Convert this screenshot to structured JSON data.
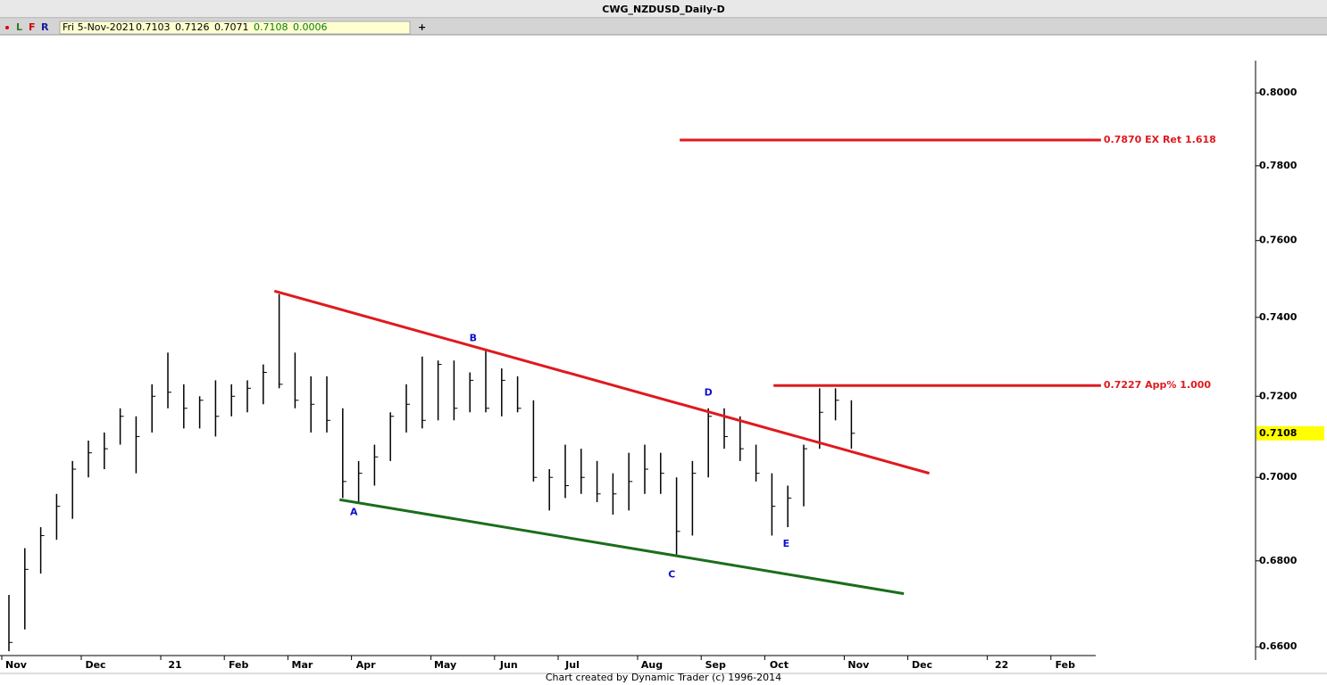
{
  "header": {
    "title": "CWG_NZDUSD_Daily-D",
    "letters": [
      "L",
      "F",
      "R"
    ],
    "date": "Fri 5-Nov-2021",
    "fields": [
      "0.7103",
      "0.7126",
      "0.7071",
      "0.7108",
      "0.0006"
    ],
    "plus": "+"
  },
  "footer": "Chart created by Dynamic Trader  (c) 1996-2014",
  "chart_data": {
    "type": "ohlc",
    "log_scale": true,
    "color": "#000000",
    "categories": [
      "Nov",
      null,
      null,
      null,
      null,
      "Dec",
      null,
      null,
      null,
      null,
      "21",
      null,
      null,
      null,
      "Feb",
      null,
      null,
      null,
      "Mar",
      null,
      null,
      null,
      "Apr",
      null,
      null,
      null,
      null,
      "May",
      null,
      null,
      null,
      "Jun",
      null,
      null,
      null,
      "Jul",
      null,
      null,
      null,
      null,
      "Aug",
      null,
      null,
      null,
      "Sep",
      null,
      null,
      null,
      "Oct",
      null,
      null,
      null,
      null,
      "Nov",
      null,
      null,
      null,
      "Dec",
      null,
      null,
      null,
      null,
      "22",
      null,
      null,
      null,
      "Feb",
      null
    ],
    "high": [
      0.672,
      0.683,
      0.688,
      0.696,
      0.704,
      0.709,
      0.711,
      0.717,
      0.715,
      0.723,
      0.731,
      0.723,
      0.72,
      0.724,
      0.723,
      0.724,
      0.728,
      0.746,
      0.731,
      0.725,
      0.725,
      0.717,
      0.704,
      0.708,
      0.716,
      0.723,
      0.73,
      0.729,
      0.729,
      0.726,
      0.732,
      0.727,
      0.725,
      0.719,
      0.702,
      0.708,
      0.707,
      0.704,
      0.701,
      0.706,
      0.708,
      0.706,
      0.7,
      0.704,
      0.717,
      0.717,
      0.715,
      0.708,
      0.701,
      0.698,
      0.708,
      0.722,
      0.722,
      0.719,
      null,
      null,
      null,
      null,
      null,
      null,
      null,
      null,
      null,
      null,
      null,
      null,
      null,
      null
    ],
    "low": [
      0.659,
      0.664,
      0.677,
      0.685,
      0.69,
      0.7,
      0.702,
      0.708,
      0.701,
      0.711,
      0.717,
      0.712,
      0.712,
      0.71,
      0.715,
      0.716,
      0.718,
      0.722,
      0.717,
      0.711,
      0.711,
      0.695,
      0.694,
      0.698,
      0.704,
      0.711,
      0.712,
      0.714,
      0.714,
      0.716,
      0.716,
      0.715,
      0.716,
      0.699,
      0.692,
      0.695,
      0.696,
      0.694,
      0.691,
      0.692,
      0.696,
      0.696,
      0.681,
      0.686,
      0.7,
      0.707,
      0.704,
      0.699,
      0.686,
      0.688,
      0.693,
      0.707,
      0.714,
      0.707,
      null,
      null,
      null,
      null,
      null,
      null,
      null,
      null,
      null,
      null,
      null,
      null,
      null,
      null
    ],
    "close": [
      0.661,
      0.678,
      0.686,
      0.693,
      0.702,
      0.706,
      0.707,
      0.715,
      0.71,
      0.72,
      0.721,
      0.717,
      0.719,
      0.715,
      0.72,
      0.722,
      0.726,
      0.723,
      0.719,
      0.718,
      0.714,
      0.699,
      0.701,
      0.705,
      0.715,
      0.718,
      0.714,
      0.728,
      0.717,
      0.724,
      0.717,
      0.724,
      0.717,
      0.7,
      0.7,
      0.698,
      0.7,
      0.696,
      0.696,
      0.699,
      0.702,
      0.701,
      0.687,
      0.701,
      0.715,
      0.71,
      0.707,
      0.701,
      0.693,
      0.695,
      0.707,
      0.716,
      0.719,
      0.7108,
      null,
      null,
      null,
      null,
      null,
      null,
      null,
      null,
      null,
      null,
      null,
      null,
      null,
      null
    ],
    "ylim": [
      0.658,
      0.809
    ],
    "yticks": [
      {
        "value": 0.66,
        "label": "0.6600"
      },
      {
        "value": 0.68,
        "label": "0.6800"
      },
      {
        "value": 0.7,
        "label": "0.7000"
      },
      {
        "value": 0.72,
        "label": "0.7200"
      },
      {
        "value": 0.74,
        "label": "0.7400"
      },
      {
        "value": 0.76,
        "label": "0.7600"
      },
      {
        "value": 0.78,
        "label": "0.7800"
      },
      {
        "value": 0.8,
        "label": "0.8000"
      }
    ],
    "last_price": {
      "value": 0.7108,
      "label": "0.7108"
    },
    "trendlines": [
      {
        "color": "#e0191e",
        "x": [
          16.7,
          57.9
        ],
        "y": [
          0.7468,
          0.701
        ]
      },
      {
        "color": "#1a6e1a",
        "x": [
          20.8,
          56.3
        ],
        "y": [
          0.6946,
          0.6723
        ]
      }
    ],
    "levels": [
      {
        "value": 0.787,
        "label": "0.7870 EX Ret 1.618",
        "x": [
          42.2,
          68.7
        ],
        "color": "#e0191e"
      },
      {
        "value": 0.7227,
        "label": "0.7227 App% 1.000",
        "x": [
          48.1,
          68.7
        ],
        "color": "#e0191e"
      }
    ],
    "points": [
      {
        "label": "A",
        "x": 21.7,
        "y": 0.6915
      },
      {
        "label": "B",
        "x": 29.2,
        "y": 0.7346
      },
      {
        "label": "C",
        "x": 41.7,
        "y": 0.6767
      },
      {
        "label": "D",
        "x": 44,
        "y": 0.7208
      },
      {
        "label": "E",
        "x": 48.9,
        "y": 0.684
      }
    ],
    "point_color": "#1010c8"
  }
}
